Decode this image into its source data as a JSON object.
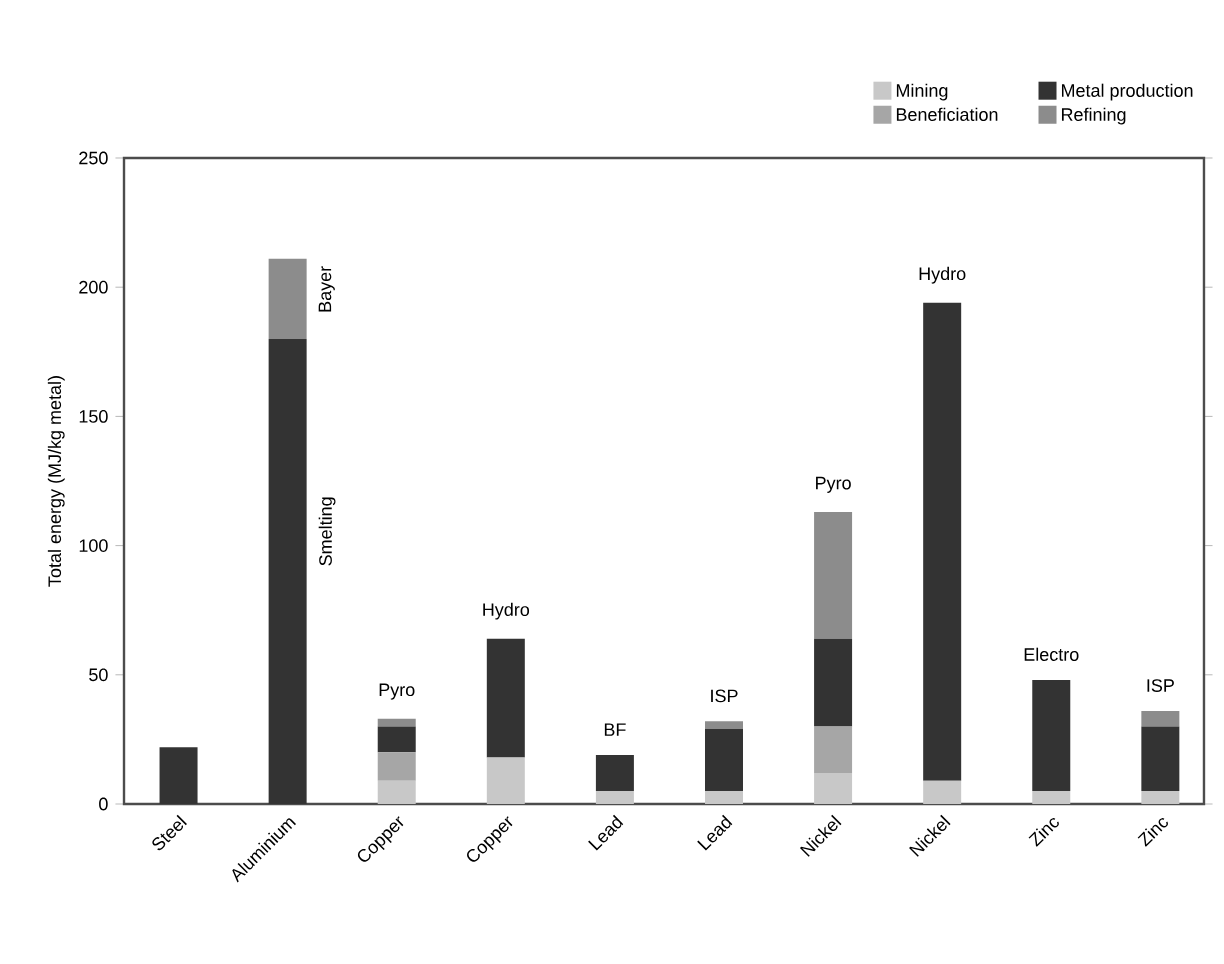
{
  "chart_data": {
    "type": "bar",
    "stacked": true,
    "ylabel": "Total energy (MJ/kg metal)",
    "categories": [
      "Steel",
      "Aluminium",
      "Copper",
      "Copper",
      "Lead",
      "Lead",
      "Nickel",
      "Nickel",
      "Zinc",
      "Zinc"
    ],
    "series": [
      {
        "name": "Mining",
        "color": "#c8c8c8",
        "values": [
          null,
          null,
          9,
          18,
          5,
          5,
          12,
          9,
          5,
          5
        ]
      },
      {
        "name": "Beneficiation",
        "color": "#a6a6a6",
        "values": [
          null,
          null,
          11,
          null,
          null,
          null,
          18,
          null,
          null,
          null
        ]
      },
      {
        "name": "Metal production",
        "color": "#333333",
        "values": [
          22,
          180,
          10,
          46,
          14,
          24,
          34,
          185,
          43,
          25
        ]
      },
      {
        "name": "Refining",
        "color": "#8c8c8c",
        "values": [
          null,
          31,
          3,
          null,
          null,
          3,
          49,
          null,
          null,
          6
        ]
      }
    ],
    "ylim": [
      0,
      250
    ],
    "yticks": [
      0,
      50,
      100,
      150,
      200,
      250
    ],
    "grid": false,
    "legend": "top right",
    "annotations": [
      "Bayer",
      "Smelting",
      "Pyro",
      "Hydro",
      "BF",
      "ISP",
      "Pyro",
      "Hydro",
      "Electro",
      "ISP"
    ]
  }
}
